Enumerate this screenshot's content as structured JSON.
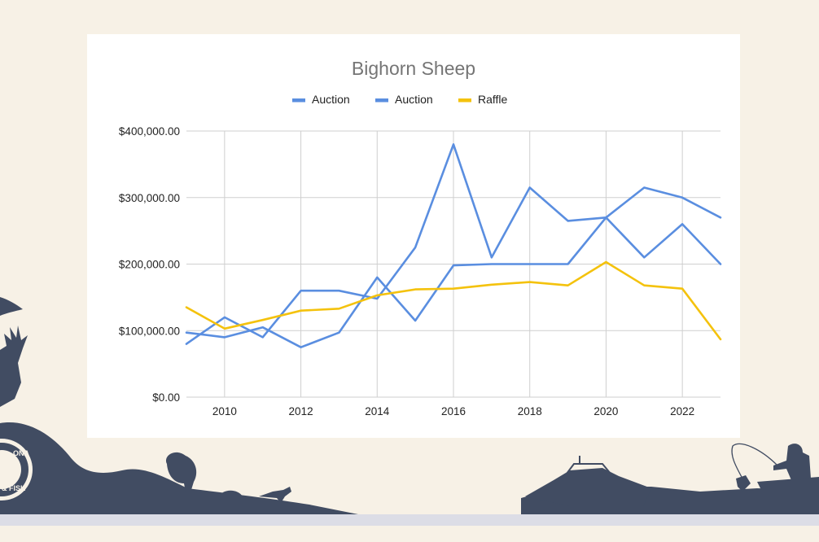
{
  "colors": {
    "background": "#f7f1e6",
    "silhouette": "#414c62",
    "strip": "#dcdde6",
    "auction": "#5a8ee0",
    "raffle": "#f4c20d"
  },
  "decor": {
    "logo_text": [
      "ONA",
      "& FISH"
    ]
  },
  "chart_data": {
    "type": "line",
    "title": "Bighorn Sheep",
    "xlabel": "",
    "ylabel": "",
    "x": [
      2009,
      2010,
      2011,
      2012,
      2013,
      2014,
      2015,
      2016,
      2017,
      2018,
      2019,
      2020,
      2021,
      2022,
      2023
    ],
    "xlim": [
      2009,
      2023
    ],
    "ylim": [
      0,
      400000
    ],
    "x_ticks": [
      2010,
      2012,
      2014,
      2016,
      2018,
      2020,
      2022
    ],
    "x_tick_labels": [
      "2010",
      "2012",
      "2014",
      "2016",
      "2018",
      "2020",
      "2022"
    ],
    "y_ticks": [
      0,
      100000,
      200000,
      300000,
      400000
    ],
    "y_tick_labels": [
      "$0.00",
      "$100,000.00",
      "$200,000.00",
      "$300,000.00",
      "$400,000.00"
    ],
    "grid": true,
    "legend_position": "top",
    "series": [
      {
        "name": "Auction",
        "color": "#5a8ee0",
        "values": [
          80000,
          120000,
          90000,
          160000,
          160000,
          148000,
          225000,
          380000,
          210000,
          315000,
          265000,
          270000,
          315000,
          300000,
          270000
        ]
      },
      {
        "name": "Auction",
        "color": "#5a8ee0",
        "values": [
          97000,
          90000,
          105000,
          75000,
          97000,
          180000,
          115000,
          198000,
          200000,
          200000,
          200000,
          270000,
          210000,
          260000,
          200000
        ]
      },
      {
        "name": "Raffle",
        "color": "#f4c20d",
        "values": [
          135000,
          103000,
          116000,
          130000,
          133000,
          153000,
          162000,
          163000,
          169000,
          173000,
          168000,
          203000,
          168000,
          163000,
          87000
        ]
      }
    ]
  }
}
